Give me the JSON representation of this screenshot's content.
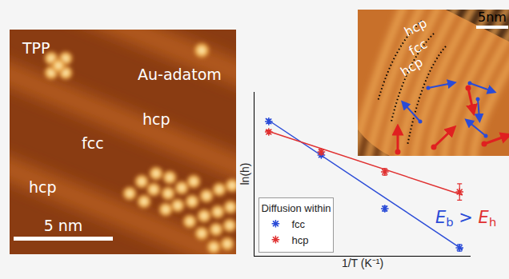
{
  "chart_data": {
    "type": "scatter",
    "x_label": "1/T (K⁻¹)",
    "y_label": "ln(h)",
    "xlim": [
      0,
      10
    ],
    "ylim": [
      0,
      10
    ],
    "xticks": [],
    "yticks": [],
    "tick_labels": false,
    "grid": false,
    "legend": "lower left",
    "legend_title": "Diffusion within",
    "marker": "asterisk",
    "series": [
      {
        "name": "fcc",
        "color": "#2a4bd7",
        "x": [
          0.66,
          3.09,
          6.03,
          9.49
        ],
        "values": [
          8.2,
          6.15,
          2.88,
          0.49
        ],
        "errors": [
          0.12,
          0.12,
          0.15,
          0.2
        ],
        "fit": {
          "x": [
            0.51,
            9.63
          ],
          "values": [
            8.39,
            0.39
          ]
        }
      },
      {
        "name": "hcp",
        "color": "#e03030",
        "x": [
          0.66,
          3.09,
          6.03,
          9.49
        ],
        "values": [
          7.56,
          6.34,
          5.12,
          3.9
        ],
        "errors": [
          0.12,
          0.15,
          0.2,
          0.5
        ],
        "fit": {
          "x": [
            0.51,
            9.63
          ],
          "values": [
            7.66,
            3.71
          ]
        }
      }
    ],
    "annotation": {
      "lhs": {
        "symbol": "E",
        "subscript": "b",
        "color": "#2a4bd7"
      },
      "relation": ">",
      "rhs": {
        "symbol": "E",
        "subscript": "h",
        "color": "#e03030"
      }
    }
  },
  "stm_left": {
    "labels": [
      "TPP",
      "Au-adatom",
      "hcp",
      "fcc",
      "hcp"
    ],
    "scale_bar": "5 nm"
  },
  "stm_right": {
    "labels": [
      "hcp",
      "fcc",
      "hcp"
    ],
    "scale_bar": "5nm"
  }
}
